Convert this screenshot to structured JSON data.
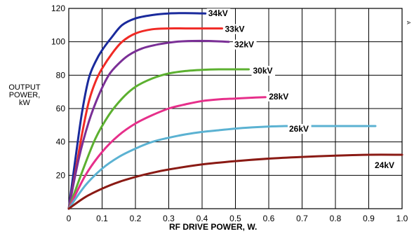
{
  "chart_data": {
    "type": "line",
    "title": "",
    "xlabel": "RF DRIVE POWER, W.",
    "ylabel_lines": [
      "OUTPUT",
      "POWER,",
      "kW"
    ],
    "xlim": [
      0,
      1.0
    ],
    "ylim": [
      0,
      120
    ],
    "x_ticks": [
      "0",
      "0.1",
      "0.2",
      "0.3",
      "0.4",
      "0.5",
      "0.6",
      "0.7",
      "0.8",
      "0.9",
      "1.0"
    ],
    "y_ticks": [
      "20",
      "40",
      "60",
      "80",
      "100",
      "120"
    ],
    "grid": true,
    "corner_mark": "A",
    "series": [
      {
        "name": "34kV",
        "color": "#1a2a9c",
        "x": [
          0,
          0.02,
          0.04,
          0.06,
          0.08,
          0.1,
          0.13,
          0.16,
          0.2,
          0.25,
          0.3,
          0.35,
          0.41
        ],
        "y": [
          0,
          30,
          58,
          78,
          88,
          95,
          103,
          110,
          114,
          116,
          117,
          117.2,
          117
        ]
      },
      {
        "name": "33kV",
        "color": "#f02a25",
        "x": [
          0,
          0.02,
          0.04,
          0.06,
          0.08,
          0.1,
          0.13,
          0.16,
          0.2,
          0.25,
          0.3,
          0.35,
          0.4,
          0.46
        ],
        "y": [
          0,
          22,
          45,
          64,
          76,
          84,
          93,
          100,
          105,
          107.5,
          108,
          108,
          108,
          108
        ]
      },
      {
        "name": "32kV",
        "color": "#7a2f96",
        "x": [
          0,
          0.03,
          0.06,
          0.09,
          0.12,
          0.15,
          0.18,
          0.22,
          0.27,
          0.32,
          0.37,
          0.42,
          0.48
        ],
        "y": [
          0,
          30,
          52,
          68,
          80,
          87,
          92,
          96,
          98.5,
          100,
          100.5,
          100.5,
          100
        ]
      },
      {
        "name": "30kV",
        "color": "#5cb030",
        "x": [
          0,
          0.04,
          0.08,
          0.12,
          0.16,
          0.2,
          0.25,
          0.3,
          0.35,
          0.4,
          0.45,
          0.5,
          0.54
        ],
        "y": [
          0,
          22,
          42,
          56,
          66,
          73,
          78,
          81,
          82.5,
          83.2,
          83.5,
          83.5,
          83.5
        ]
      },
      {
        "name": "28kV",
        "color": "#e62f8a",
        "x": [
          0,
          0.05,
          0.1,
          0.15,
          0.2,
          0.25,
          0.3,
          0.35,
          0.4,
          0.45,
          0.5,
          0.55,
          0.59
        ],
        "y": [
          0,
          20,
          34,
          44,
          51,
          56,
          60,
          62.5,
          64.5,
          65.5,
          66,
          66.5,
          66.8
        ]
      },
      {
        "name": "26kV",
        "color": "#5bb2d2",
        "x": [
          0,
          0.05,
          0.1,
          0.15,
          0.2,
          0.25,
          0.3,
          0.35,
          0.4,
          0.45,
          0.5,
          0.55,
          0.6,
          0.65,
          0.7,
          0.8,
          0.92
        ],
        "y": [
          0,
          14,
          24,
          31,
          36,
          40,
          42.5,
          44.5,
          46,
          47,
          48,
          48.7,
          49.2,
          49.5,
          49.5,
          49.5,
          49.5
        ]
      },
      {
        "name": "24kV",
        "color": "#8a1a14",
        "x": [
          0,
          0.05,
          0.1,
          0.15,
          0.2,
          0.25,
          0.3,
          0.4,
          0.5,
          0.6,
          0.7,
          0.8,
          0.9,
          1.0
        ],
        "y": [
          0,
          7,
          12,
          16,
          19,
          21.5,
          23.5,
          26.5,
          28.5,
          30,
          31,
          31.8,
          32.3,
          32.3
        ]
      }
    ]
  }
}
